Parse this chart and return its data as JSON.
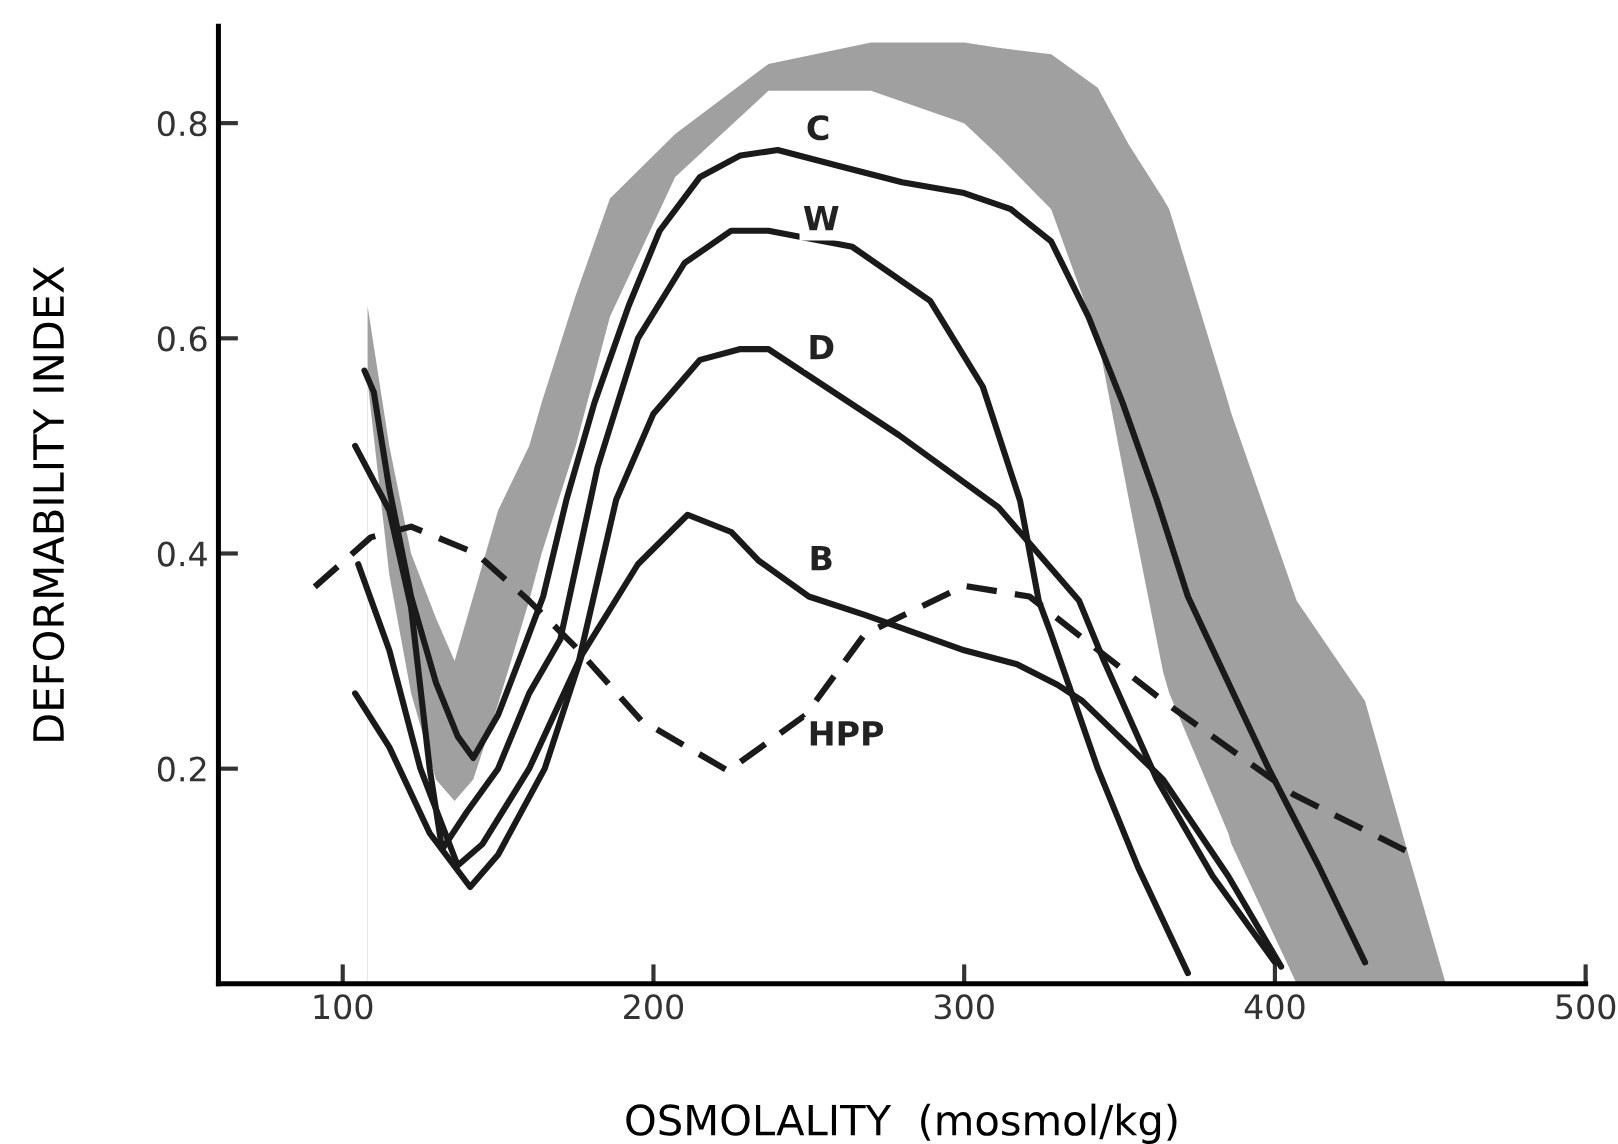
{
  "chart_data": {
    "type": "line",
    "xlabel": "OSMOLALITY  (mosmol/kg)",
    "ylabel": "DEFORMABILITY INDEX",
    "xlim": [
      60,
      500
    ],
    "xticks": [
      100,
      200,
      300,
      400,
      500
    ],
    "ylim": [
      0,
      0.89
    ],
    "yticks": [
      0.2,
      0.4,
      0.6,
      0.8
    ],
    "grid": false,
    "legend": false,
    "marker": "none",
    "series": [
      {
        "type": "area",
        "color": "#a0a0a0",
        "x": [
          108,
          115,
          122,
          130,
          136,
          142,
          150,
          160,
          164,
          175,
          186,
          207,
          237,
          270,
          300,
          311,
          328,
          343,
          353,
          364,
          366,
          385,
          386,
          407,
          429,
          442,
          455
        ],
        "values": [
          0.63,
          0.5,
          0.4,
          0.34,
          0.3,
          0.36,
          0.44,
          0.5,
          0.54,
          0.64,
          0.73,
          0.79,
          0.855,
          0.875,
          0.875,
          0.87,
          0.864,
          0.833,
          0.78,
          0.73,
          0.72,
          0.54,
          0.53,
          0.356,
          0.263,
          0.13,
          0.0
        ]
      },
      {
        "type": "area",
        "color": "#ffffff",
        "x": [
          108,
          115,
          122,
          130,
          136,
          142,
          150,
          160,
          164,
          175,
          186,
          207,
          237,
          270,
          300,
          311,
          328,
          343,
          353,
          364,
          366,
          385,
          386,
          407,
          429,
          442,
          455
        ],
        "values": [
          0.56,
          0.38,
          0.27,
          0.19,
          0.17,
          0.19,
          0.26,
          0.356,
          0.4,
          0.5,
          0.62,
          0.75,
          0.83,
          0.83,
          0.8,
          0.77,
          0.72,
          0.6,
          0.45,
          0.29,
          0.27,
          0.14,
          0.13,
          0.0,
          0.0,
          0.0,
          0.0
        ]
      },
      {
        "color": "#1a1a1a",
        "line_style": "solid",
        "x": [
          107,
          110,
          115,
          122,
          130,
          137,
          142,
          150,
          158,
          164.5,
          172,
          181,
          192,
          202,
          215,
          228,
          240,
          260,
          280,
          300,
          315,
          328,
          340,
          351,
          362,
          372,
          385,
          398,
          414,
          429
        ],
        "values": [
          0.57,
          0.55,
          0.46,
          0.36,
          0.28,
          0.23,
          0.21,
          0.25,
          0.31,
          0.36,
          0.45,
          0.54,
          0.63,
          0.7,
          0.75,
          0.77,
          0.775,
          0.76,
          0.745,
          0.735,
          0.72,
          0.69,
          0.62,
          0.54,
          0.45,
          0.36,
          0.28,
          0.2,
          0.11,
          0.02
        ]
      },
      {
        "color": "#1a1a1a",
        "line_style": "solid",
        "x": [
          104,
          115,
          122,
          128,
          132,
          140,
          150,
          160,
          170,
          182,
          195,
          210,
          225,
          237,
          264,
          289,
          306,
          318,
          324,
          328,
          343,
          356,
          372
        ],
        "values": [
          0.5,
          0.44,
          0.35,
          0.2,
          0.125,
          0.16,
          0.2,
          0.27,
          0.32,
          0.48,
          0.6,
          0.67,
          0.7,
          0.7,
          0.685,
          0.635,
          0.555,
          0.449,
          0.356,
          0.325,
          0.2,
          0.108,
          0.01
        ]
      },
      {
        "color": "#1a1a1a",
        "line_style": "solid",
        "x": [
          105,
          115,
          125,
          137,
          145,
          160,
          168,
          176,
          188,
          200,
          215,
          228,
          237,
          279,
          311,
          337,
          345,
          362,
          380,
          400
        ],
        "values": [
          0.39,
          0.31,
          0.2,
          0.11,
          0.13,
          0.2,
          0.25,
          0.3,
          0.45,
          0.53,
          0.58,
          0.59,
          0.59,
          0.51,
          0.443,
          0.356,
          0.3,
          0.19,
          0.1,
          0.02
        ]
      },
      {
        "color": "#1a1a1a",
        "line_style": "solid",
        "x": [
          104,
          115,
          128,
          141,
          150,
          165,
          177,
          195,
          211,
          225,
          234,
          250,
          268,
          300,
          317,
          330,
          338,
          364,
          385,
          402
        ],
        "values": [
          0.27,
          0.22,
          0.14,
          0.09,
          0.12,
          0.2,
          0.306,
          0.39,
          0.436,
          0.42,
          0.393,
          0.36,
          0.343,
          0.31,
          0.297,
          0.278,
          0.263,
          0.19,
          0.1,
          0.016
        ]
      },
      {
        "color": "#1a1a1a",
        "line_style": "dashed",
        "x": [
          91,
          109,
          122,
          143,
          160,
          175,
          196,
          224,
          249,
          268,
          300,
          321,
          364,
          406,
          442
        ],
        "values": [
          0.369,
          0.415,
          0.425,
          0.4,
          0.356,
          0.313,
          0.245,
          0.198,
          0.25,
          0.325,
          0.37,
          0.36,
          0.263,
          0.176,
          0.124
        ]
      }
    ],
    "annotations": [
      {
        "text": "C",
        "x": 253,
        "y": 0.793
      },
      {
        "text": "W",
        "x": 254,
        "y": 0.709
      },
      {
        "text": "D",
        "x": 254,
        "y": 0.589
      },
      {
        "text": "B",
        "x": 254,
        "y": 0.393
      },
      {
        "text": "HPP",
        "x": 262,
        "y": 0.23
      }
    ]
  }
}
